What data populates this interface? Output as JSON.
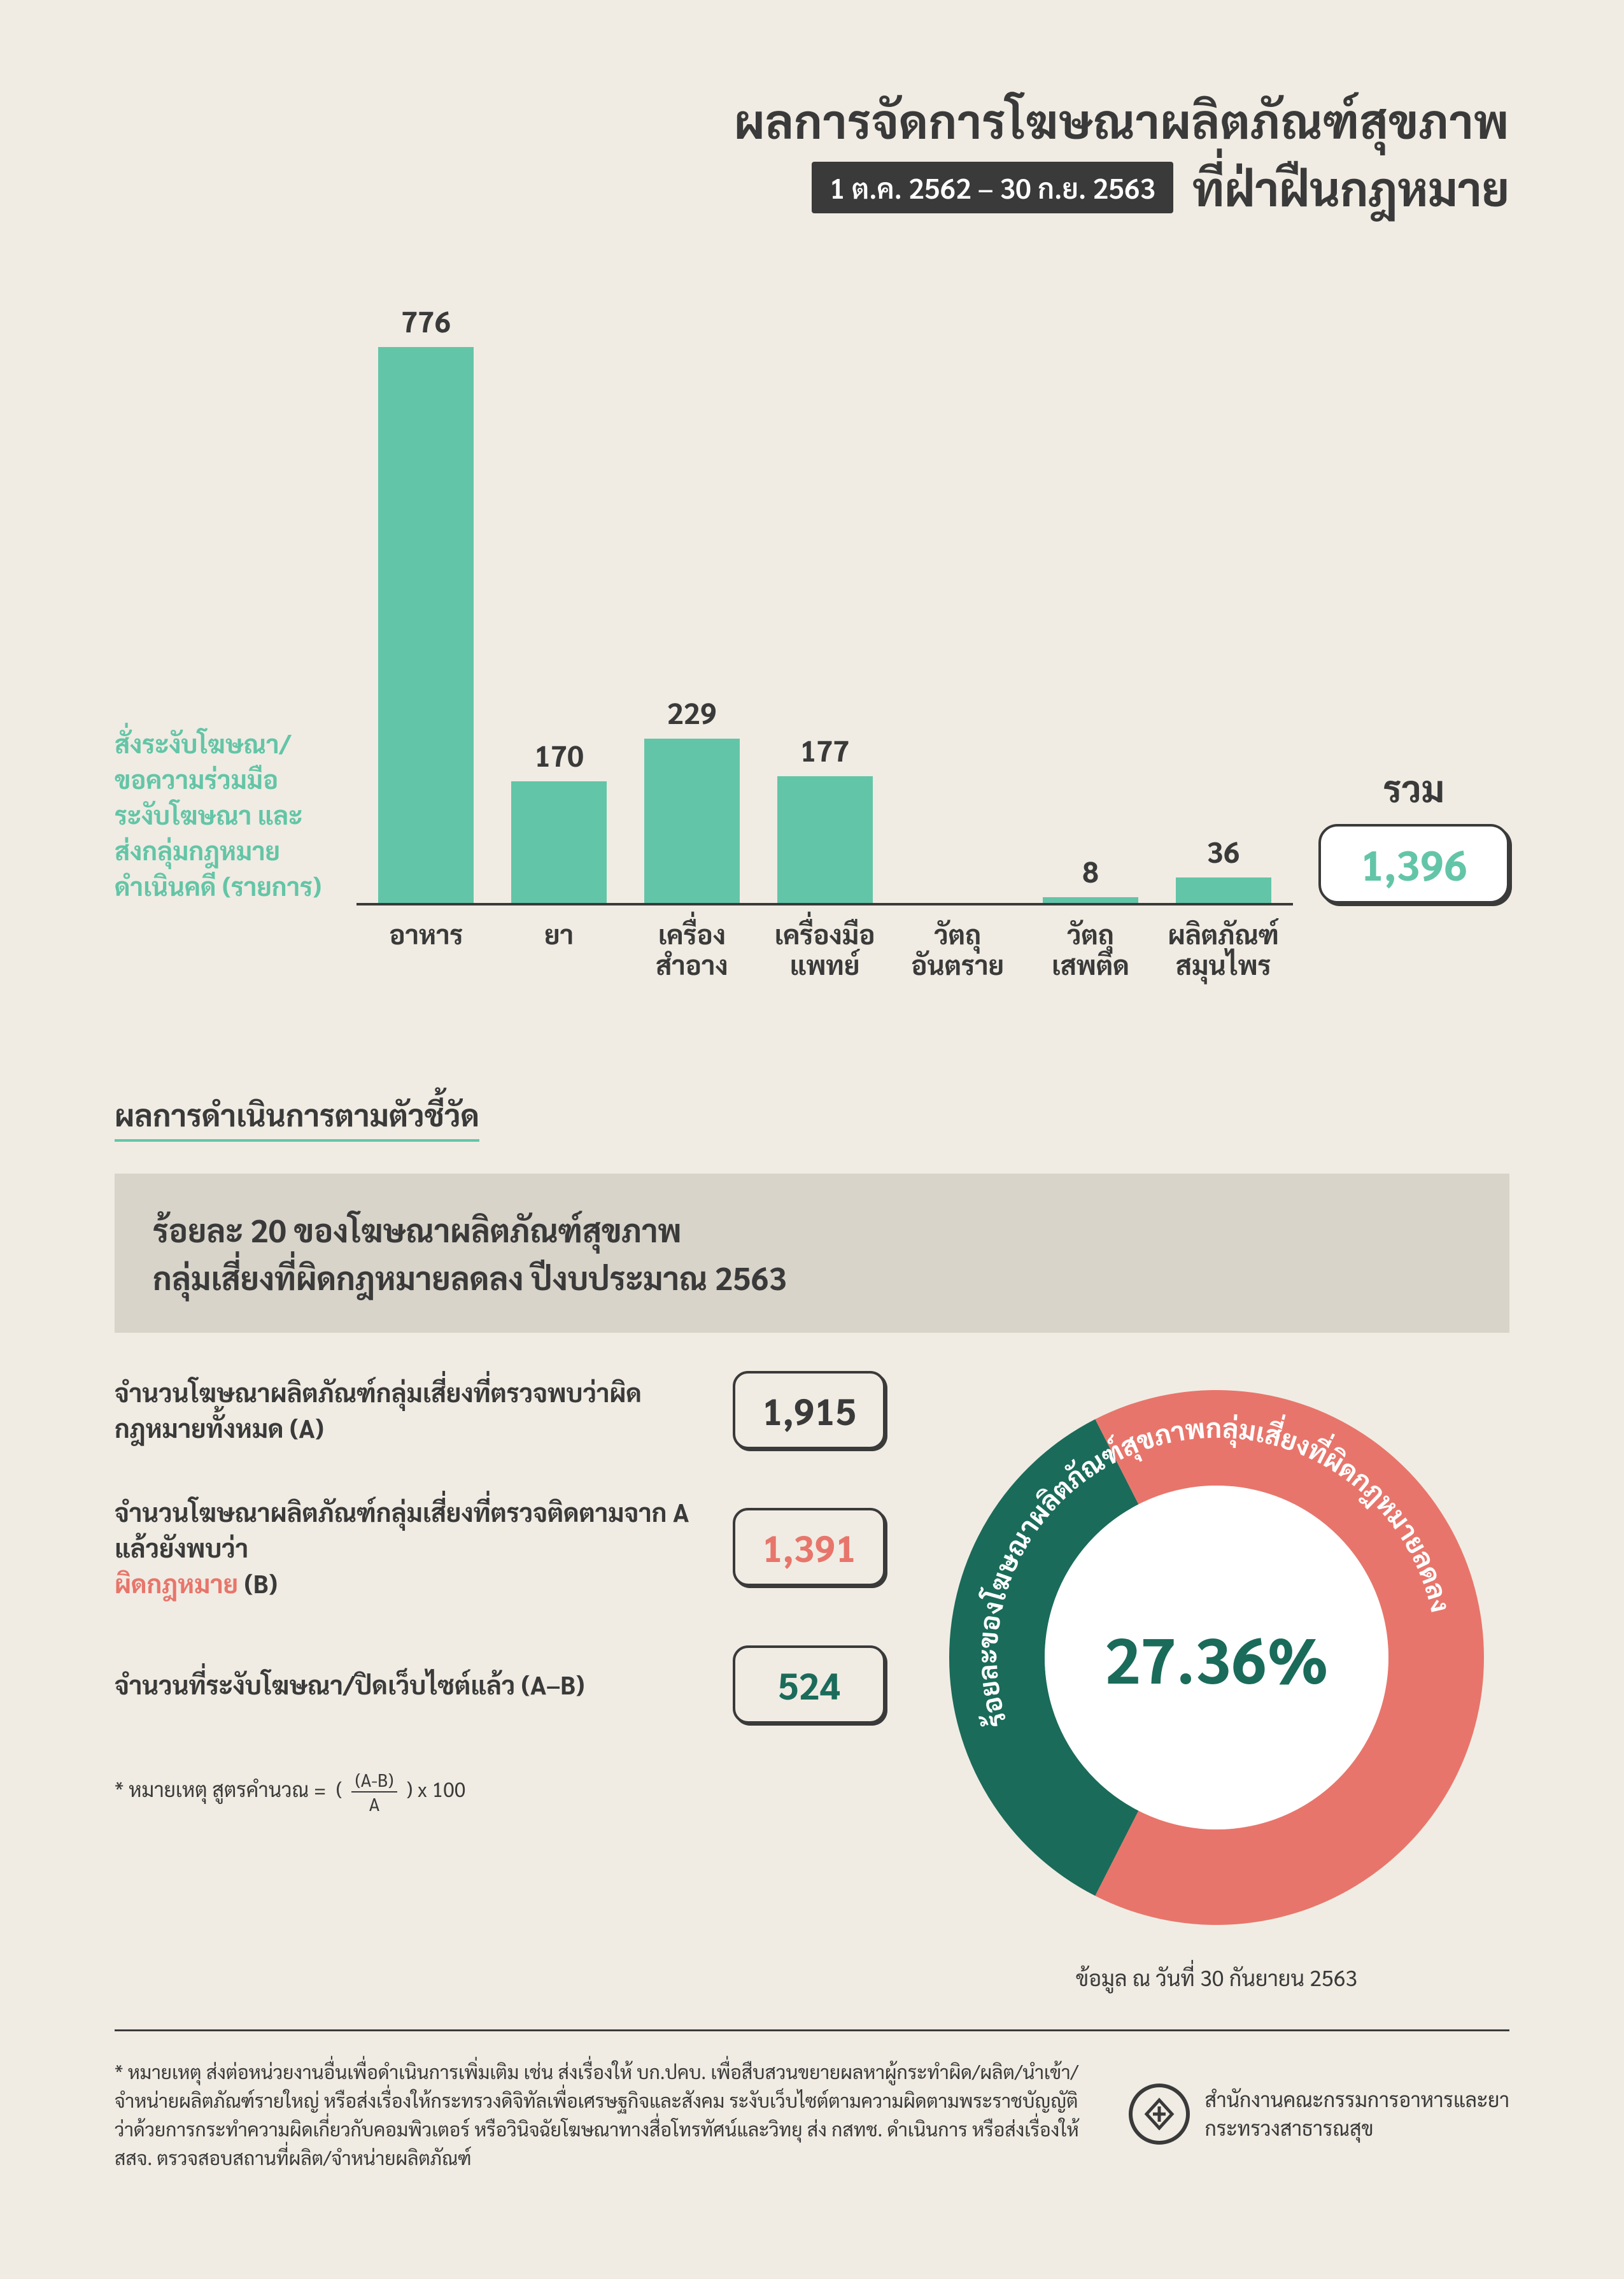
{
  "header": {
    "title_line1": "ผลการจัดการโฆษณาผลิตภัณฑ์สุขภาพ",
    "date_range": "1 ต.ค. 2562 – 30 ก.ย. 2563",
    "title_line2": "ที่ฝ่าฝืนกฎหมาย"
  },
  "bar_chart": {
    "type": "bar",
    "y_label": "สั่งระงับโฆษณา/\nขอความร่วมมือ\nระงับโฆษณา และ\nส่งกลุ่มกฎหมาย\nดำเนินคดี (รายการ)",
    "categories": [
      "อาหาร",
      "ยา",
      "เครื่อง\nสำอาง",
      "เครื่องมือ\nแพทย์",
      "วัตถุ\nอันตราย",
      "วัตถุ\nเสพติด",
      "ผลิตภัณฑ์\nสมุนไพร"
    ],
    "values": [
      776,
      170,
      229,
      177,
      0,
      8,
      36
    ],
    "ymax": 800,
    "bar_color": "#63c5a7",
    "axis_color": "#3a3a3a",
    "value_fontsize": 46,
    "label_fontsize": 42,
    "total_label": "รวม",
    "total_value": "1,396",
    "total_color": "#63c5a7"
  },
  "section2": {
    "heading": "ผลการดำเนินการตามตัวชี้วัด",
    "gray_text": "ร้อยละ 20 ของโฆษณาผลิตภัณฑ์สุขภาพ\nกลุ่มเสี่ยงที่ผิดกฎหมายลดลง ปีงบประมาณ 2563",
    "stats": [
      {
        "text": "จำนวนโฆษณาผลิตภัณฑ์กลุ่มเสี่ยงที่ตรวจพบว่าผิดกฎหมายทั้งหมด (A)",
        "value": "1,915",
        "style": "black"
      },
      {
        "text_pre": "จำนวนโฆษณาผลิตภัณฑ์กลุ่มเสี่ยงที่ตรวจติดตามจาก A แล้วยังพบว่า",
        "text_red": "ผิดกฎหมาย",
        "text_post": " (B)",
        "value": "1,391",
        "style": "red"
      },
      {
        "text": "จำนวนที่ระงับโฆษณา/ปิดเว็บไซต์แล้ว (A–B)",
        "value": "524",
        "style": "green"
      }
    ],
    "formula_label": "* หมายเหตุ สูตรคำนวณ =",
    "formula_frac_top": "(A-B)",
    "formula_frac_bot": "A",
    "formula_tail": ") x 100",
    "formula_open": "(",
    "donut": {
      "type": "donut",
      "percent_value": 27.36,
      "percent_label": "27.36%",
      "outer_colors": [
        "#e8756b",
        "#1a6b5a"
      ],
      "outer_ratio": [
        0.65,
        0.35
      ],
      "path_text": "ร้อยละของโฆษณาผลิตภัณฑ์สุขภาพกลุ่มเสี่ยงที่ผิดกฎหมายลดลง",
      "inner_color": "#ffffff",
      "ring_width": 150,
      "caption": "ข้อมูล ณ วันที่ 30 กันยายน 2563"
    }
  },
  "footer": {
    "note": "* หมายเหตุ ส่งต่อหน่วยงานอื่นเพื่อดำเนินการเพิ่มเติม เช่น ส่งเรื่องให้ บก.ปคบ. เพื่อสืบสวนขยายผลหาผู้กระทำผิด/ผลิต/นำเข้า/จำหน่ายผลิตภัณฑ์รายใหญ่ หรือส่งเรื่องให้กระทรวงดิจิทัลเพื่อเศรษฐกิจและสังคม ระงับเว็บไซต์ตามความผิดตามพระราชบัญญัติว่าด้วยการกระทำความผิดเกี่ยวกับคอมพิวเตอร์ หรือวินิจฉัยโฆษณาทางสื่อโทรทัศน์และวิทยุ ส่ง กสทช. ดำเนินการ หรือส่งเรื่องให้ สสจ. ตรวจสอบสถานที่ผลิต/จำหน่ายผลิตภัณฑ์",
    "org_line1": "สำนักงานคณะกรรมการอาหารและยา",
    "org_line2": "กระทรวงสาธารณสุข"
  },
  "colors": {
    "bg": "#f0ece3",
    "text": "#3a3a3a",
    "green": "#63c5a7",
    "dark_green": "#1a6b5a",
    "red": "#e8756b",
    "gray_block": "#d9d4ca"
  }
}
